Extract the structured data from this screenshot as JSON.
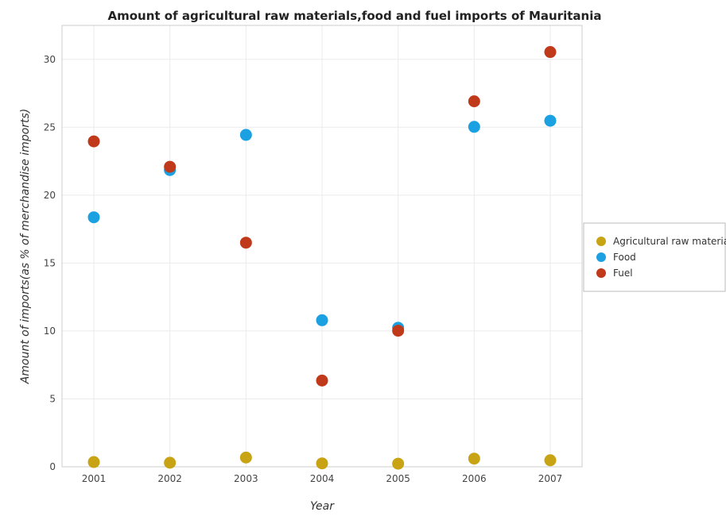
{
  "chart_data": {
    "type": "scatter",
    "title": "Amount of agricultural raw materials,food and fuel imports of Mauritania",
    "xlabel": "Year",
    "ylabel": "Amount of imports(as % of merchandise imports)",
    "categories": [
      "2001",
      "2002",
      "2003",
      "2004",
      "2005",
      "2006",
      "2007"
    ],
    "ylim": [
      0,
      32.5
    ],
    "yticks": [
      0,
      5,
      10,
      15,
      20,
      25,
      30
    ],
    "ytick_labels": [
      "0",
      "5",
      "10",
      "15",
      "20",
      "25",
      "30"
    ],
    "grid": true,
    "legend_position": "right",
    "series": [
      {
        "name": "Agricultural raw materials",
        "color": "#c8a415",
        "values": [
          0.35,
          0.3,
          0.68,
          0.25,
          0.23,
          0.6,
          0.48
        ]
      },
      {
        "name": "Food",
        "color": "#1ba1e2",
        "values": [
          18.37,
          21.85,
          24.44,
          10.79,
          10.24,
          25.03,
          25.48
        ]
      },
      {
        "name": "Fuel",
        "color": "#c0391b",
        "values": [
          23.96,
          22.09,
          16.5,
          6.35,
          10.02,
          26.91,
          30.54
        ]
      }
    ]
  }
}
